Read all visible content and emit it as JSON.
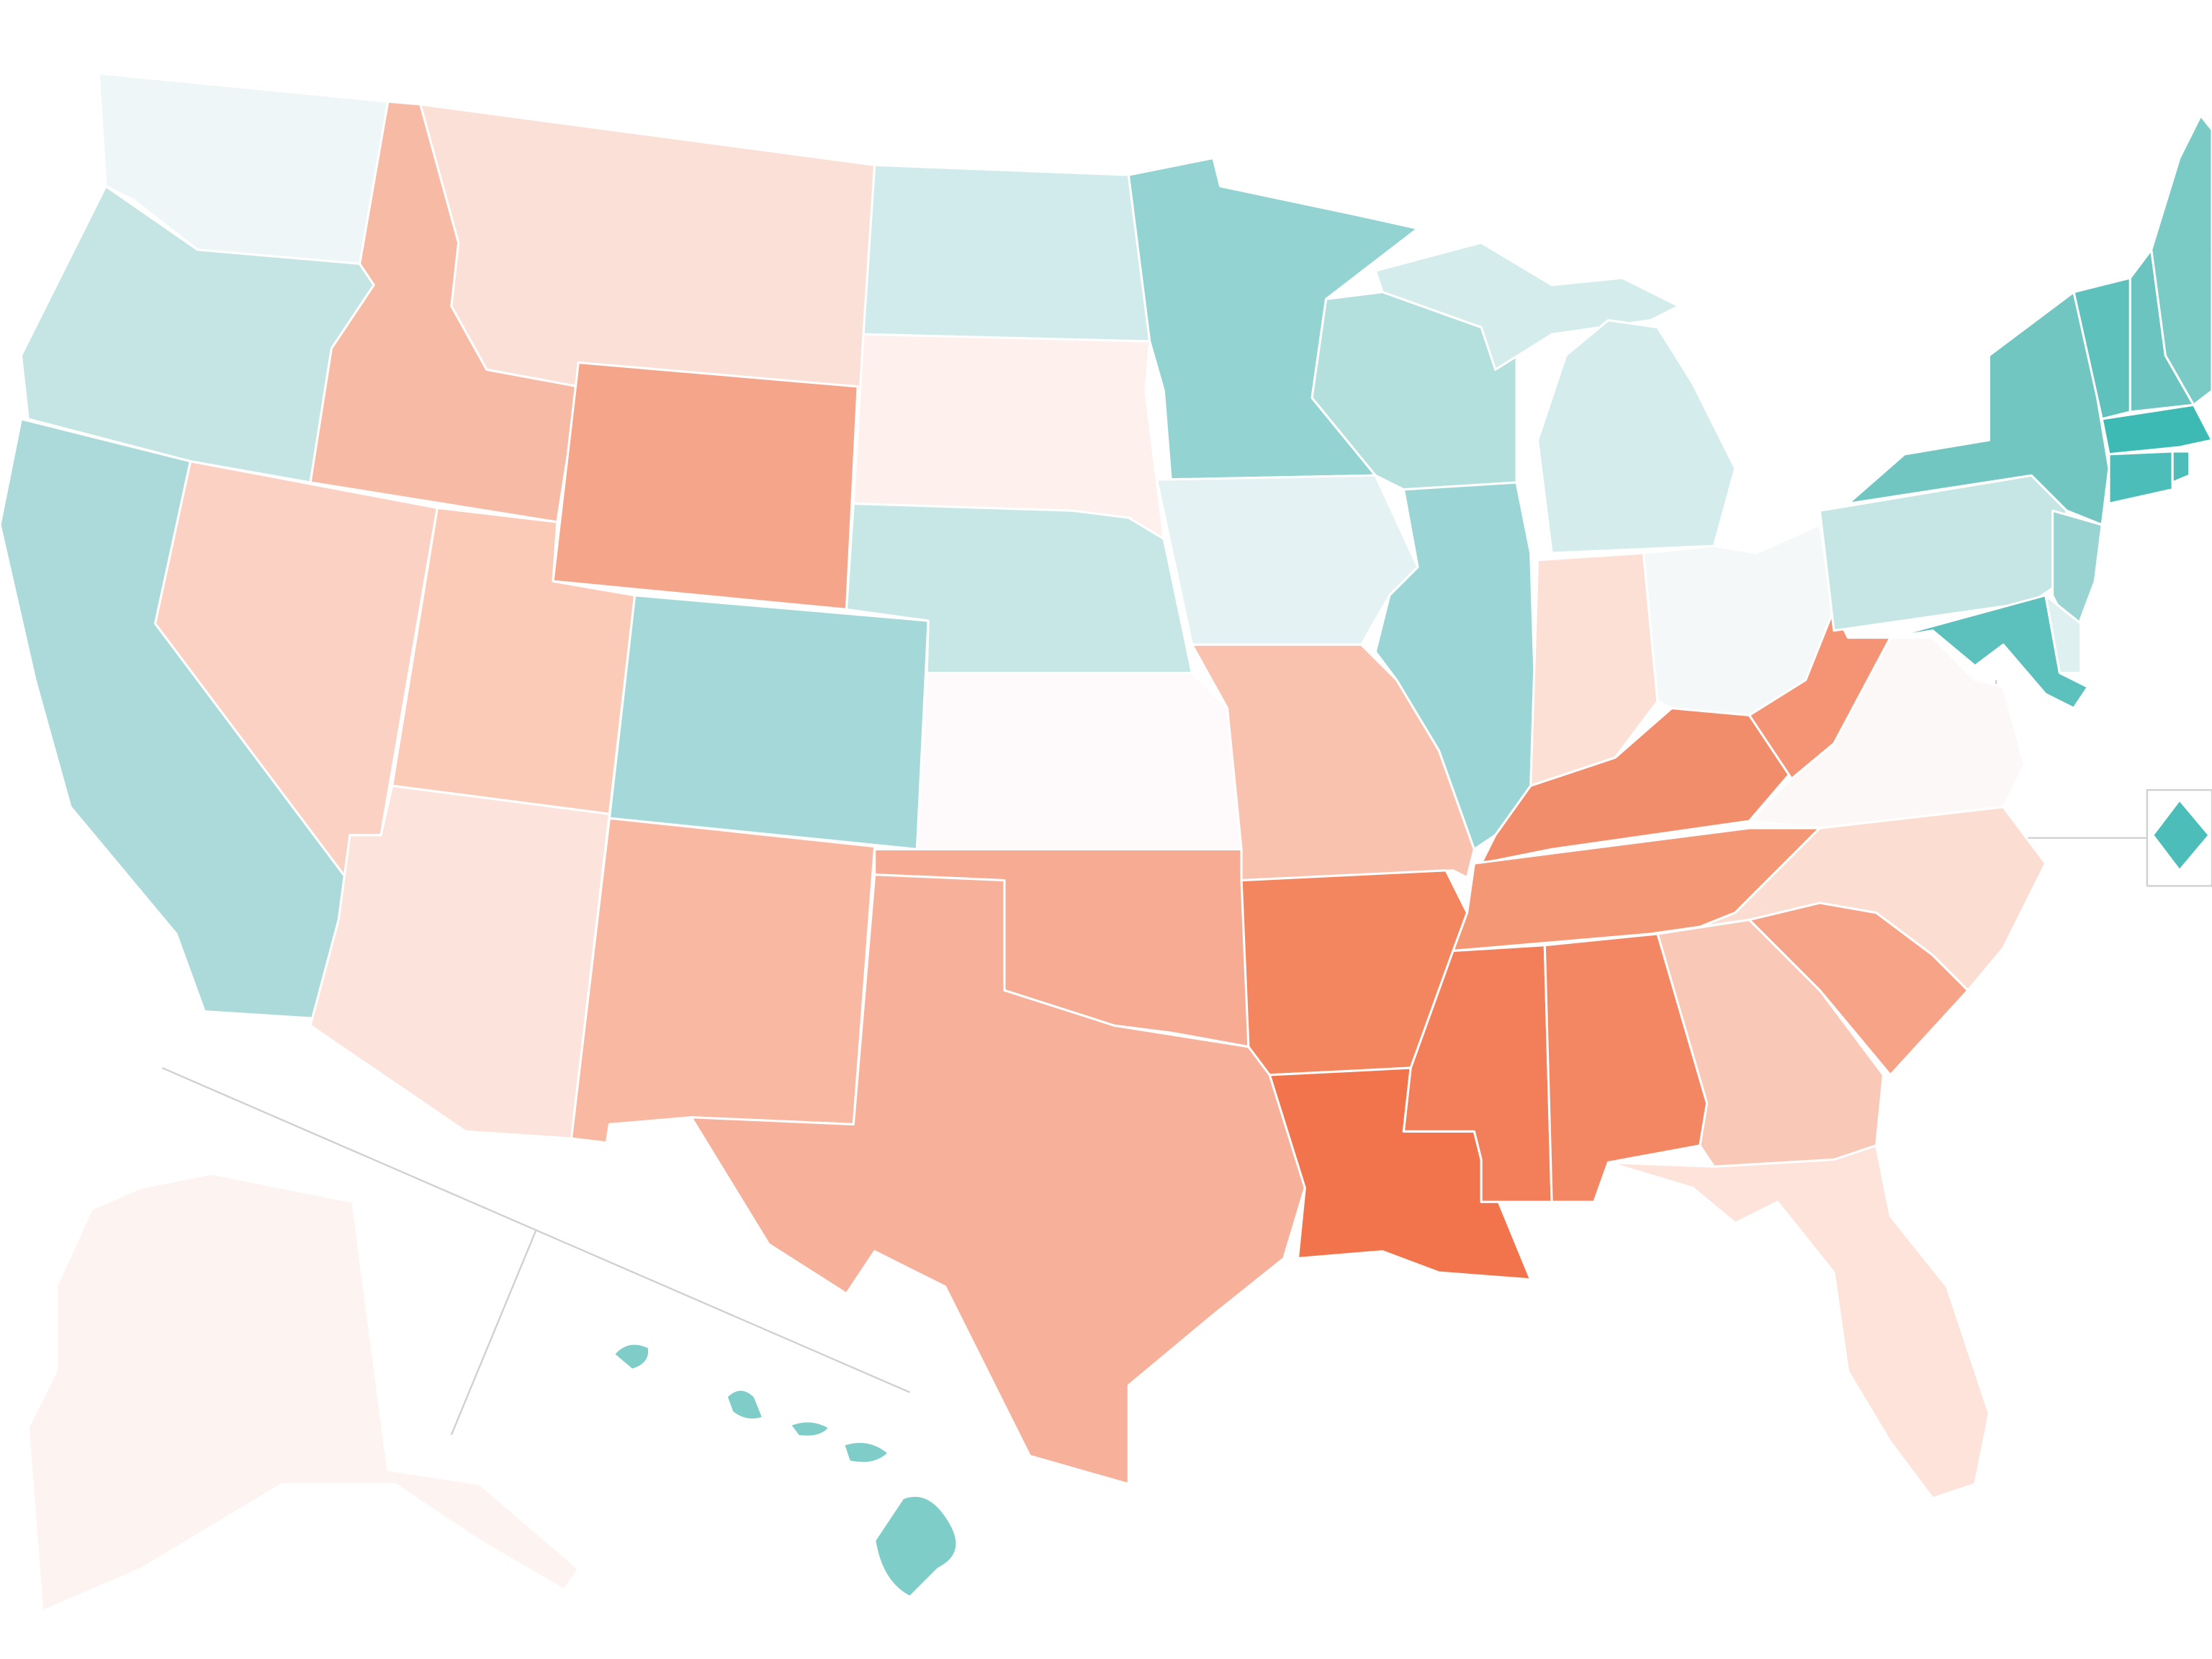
{
  "map": {
    "fills": [
      "#eef6f8",
      "#c5e4e4",
      "#acdada",
      "#f7baa5",
      "#fbe0d7",
      "#fbd1c3",
      "#fbcbb8",
      "#fce4dc",
      "#f5a68a",
      "#a5d9d9",
      "#f8b8a1",
      "#d1ebec",
      "#fdf0ed",
      "#c7e6e6",
      "#fef9fa",
      "#f7ab92",
      "#f7b09a",
      "#93d3d2",
      "#e5f2f3",
      "#f9c2ae",
      "#f4865f",
      "#f2744d",
      "#b3dfdd",
      "#9cd5d6",
      "#d5ecec",
      "#d5ecec",
      "#fce0d5",
      "#f5f8f9",
      "#f28d6b",
      "#f39774",
      "#f27e5a",
      "#f48763",
      "#f9c8b6",
      "#fde3da",
      "#f6a387",
      "#fcddd2",
      "#fdf8f8",
      "#f59474",
      "#c6e5e5",
      "#72c6c2",
      "#99d3d2",
      "#dff0f0",
      "#5cc1bd",
      "#5ec1bc",
      "#6bc4bf",
      "#7acac5",
      "#3dbab4",
      "#4cbdb8",
      "#4cbdb8",
      "#4cbdb8",
      "#fdf3f1",
      "#7fcdc9"
    ]
  }
}
